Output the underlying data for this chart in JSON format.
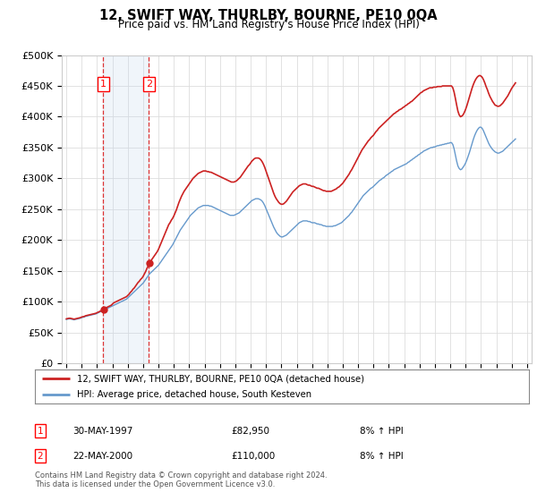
{
  "title": "12, SWIFT WAY, THURLBY, BOURNE, PE10 0QA",
  "subtitle": "Price paid vs. HM Land Registry's House Price Index (HPI)",
  "ylabel_ticks": [
    "£0",
    "£50K",
    "£100K",
    "£150K",
    "£200K",
    "£250K",
    "£300K",
    "£350K",
    "£400K",
    "£450K",
    "£500K"
  ],
  "ylim": [
    0,
    500000
  ],
  "xlim_start": 1994.7,
  "xlim_end": 2025.3,
  "background_color": "#ffffff",
  "grid_color": "#dddddd",
  "sale1_date": "30-MAY-1997",
  "sale1_price": 82950,
  "sale1_label": "1",
  "sale1_year": 1997.41,
  "sale2_date": "22-MAY-2000",
  "sale2_price": 110000,
  "sale2_label": "2",
  "sale2_year": 2000.38,
  "hpi_color": "#6699cc",
  "hpi_fill_color": "#c5d8ee",
  "price_color": "#cc2222",
  "vline_color": "#dd3333",
  "legend_label_price": "12, SWIFT WAY, THURLBY, BOURNE, PE10 0QA (detached house)",
  "legend_label_hpi": "HPI: Average price, detached house, South Kesteven",
  "footer": "Contains HM Land Registry data © Crown copyright and database right 2024.\nThis data is licensed under the Open Government Licence v3.0.",
  "hpi_data_x": [
    1995.0,
    1995.083,
    1995.167,
    1995.25,
    1995.333,
    1995.417,
    1995.5,
    1995.583,
    1995.667,
    1995.75,
    1995.833,
    1995.917,
    1996.0,
    1996.083,
    1996.167,
    1996.25,
    1996.333,
    1996.417,
    1996.5,
    1996.583,
    1996.667,
    1996.75,
    1996.833,
    1996.917,
    1997.0,
    1997.083,
    1997.167,
    1997.25,
    1997.333,
    1997.417,
    1997.5,
    1997.583,
    1997.667,
    1997.75,
    1997.833,
    1997.917,
    1998.0,
    1998.083,
    1998.167,
    1998.25,
    1998.333,
    1998.417,
    1998.5,
    1998.583,
    1998.667,
    1998.75,
    1998.833,
    1998.917,
    1999.0,
    1999.083,
    1999.167,
    1999.25,
    1999.333,
    1999.417,
    1999.5,
    1999.583,
    1999.667,
    1999.75,
    1999.833,
    1999.917,
    2000.0,
    2000.083,
    2000.167,
    2000.25,
    2000.333,
    2000.417,
    2000.5,
    2000.583,
    2000.667,
    2000.75,
    2000.833,
    2000.917,
    2001.0,
    2001.083,
    2001.167,
    2001.25,
    2001.333,
    2001.417,
    2001.5,
    2001.583,
    2001.667,
    2001.75,
    2001.833,
    2001.917,
    2002.0,
    2002.083,
    2002.167,
    2002.25,
    2002.333,
    2002.417,
    2002.5,
    2002.583,
    2002.667,
    2002.75,
    2002.833,
    2002.917,
    2003.0,
    2003.083,
    2003.167,
    2003.25,
    2003.333,
    2003.417,
    2003.5,
    2003.583,
    2003.667,
    2003.75,
    2003.833,
    2003.917,
    2004.0,
    2004.083,
    2004.167,
    2004.25,
    2004.333,
    2004.417,
    2004.5,
    2004.583,
    2004.667,
    2004.75,
    2004.833,
    2004.917,
    2005.0,
    2005.083,
    2005.167,
    2005.25,
    2005.333,
    2005.417,
    2005.5,
    2005.583,
    2005.667,
    2005.75,
    2005.833,
    2005.917,
    2006.0,
    2006.083,
    2006.167,
    2006.25,
    2006.333,
    2006.417,
    2006.5,
    2006.583,
    2006.667,
    2006.75,
    2006.833,
    2006.917,
    2007.0,
    2007.083,
    2007.167,
    2007.25,
    2007.333,
    2007.417,
    2007.5,
    2007.583,
    2007.667,
    2007.75,
    2007.833,
    2007.917,
    2008.0,
    2008.083,
    2008.167,
    2008.25,
    2008.333,
    2008.417,
    2008.5,
    2008.583,
    2008.667,
    2008.75,
    2008.833,
    2008.917,
    2009.0,
    2009.083,
    2009.167,
    2009.25,
    2009.333,
    2009.417,
    2009.5,
    2009.583,
    2009.667,
    2009.75,
    2009.833,
    2009.917,
    2010.0,
    2010.083,
    2010.167,
    2010.25,
    2010.333,
    2010.417,
    2010.5,
    2010.583,
    2010.667,
    2010.75,
    2010.833,
    2010.917,
    2011.0,
    2011.083,
    2011.167,
    2011.25,
    2011.333,
    2011.417,
    2011.5,
    2011.583,
    2011.667,
    2011.75,
    2011.833,
    2011.917,
    2012.0,
    2012.083,
    2012.167,
    2012.25,
    2012.333,
    2012.417,
    2012.5,
    2012.583,
    2012.667,
    2012.75,
    2012.833,
    2012.917,
    2013.0,
    2013.083,
    2013.167,
    2013.25,
    2013.333,
    2013.417,
    2013.5,
    2013.583,
    2013.667,
    2013.75,
    2013.833,
    2013.917,
    2014.0,
    2014.083,
    2014.167,
    2014.25,
    2014.333,
    2014.417,
    2014.5,
    2014.583,
    2014.667,
    2014.75,
    2014.833,
    2014.917,
    2015.0,
    2015.083,
    2015.167,
    2015.25,
    2015.333,
    2015.417,
    2015.5,
    2015.583,
    2015.667,
    2015.75,
    2015.833,
    2015.917,
    2016.0,
    2016.083,
    2016.167,
    2016.25,
    2016.333,
    2016.417,
    2016.5,
    2016.583,
    2016.667,
    2016.75,
    2016.833,
    2016.917,
    2017.0,
    2017.083,
    2017.167,
    2017.25,
    2017.333,
    2017.417,
    2017.5,
    2017.583,
    2017.667,
    2017.75,
    2017.833,
    2017.917,
    2018.0,
    2018.083,
    2018.167,
    2018.25,
    2018.333,
    2018.417,
    2018.5,
    2018.583,
    2018.667,
    2018.75,
    2018.833,
    2018.917,
    2019.0,
    2019.083,
    2019.167,
    2019.25,
    2019.333,
    2019.417,
    2019.5,
    2019.583,
    2019.667,
    2019.75,
    2019.833,
    2019.917,
    2020.0,
    2020.083,
    2020.167,
    2020.25,
    2020.333,
    2020.417,
    2020.5,
    2020.583,
    2020.667,
    2020.75,
    2020.833,
    2020.917,
    2021.0,
    2021.083,
    2021.167,
    2021.25,
    2021.333,
    2021.417,
    2021.5,
    2021.583,
    2021.667,
    2021.75,
    2021.833,
    2021.917,
    2022.0,
    2022.083,
    2022.167,
    2022.25,
    2022.333,
    2022.417,
    2022.5,
    2022.583,
    2022.667,
    2022.75,
    2022.833,
    2022.917,
    2023.0,
    2023.083,
    2023.167,
    2023.25,
    2023.333,
    2023.417,
    2023.5,
    2023.583,
    2023.667,
    2023.75,
    2023.833,
    2023.917,
    2024.0,
    2024.083,
    2024.167,
    2024.25
  ],
  "hpi_data_y": [
    71000,
    71500,
    72000,
    72000,
    71500,
    71000,
    70500,
    71000,
    71500,
    72000,
    72500,
    73000,
    74000,
    74500,
    75000,
    76000,
    76500,
    77000,
    77500,
    78000,
    78500,
    79000,
    79500,
    80000,
    81000,
    82000,
    83000,
    84000,
    85000,
    86000,
    87000,
    88000,
    89000,
    90000,
    91000,
    92000,
    93000,
    94000,
    95000,
    96000,
    97000,
    98000,
    99000,
    100000,
    101000,
    102000,
    103000,
    104000,
    106000,
    108000,
    110000,
    112000,
    114000,
    116000,
    118000,
    120000,
    122000,
    124000,
    126000,
    128000,
    130000,
    133000,
    136000,
    139000,
    142000,
    145000,
    147000,
    149000,
    151000,
    153000,
    155000,
    157000,
    159000,
    162000,
    165000,
    168000,
    171000,
    174000,
    177000,
    180000,
    183000,
    186000,
    189000,
    192000,
    196000,
    200000,
    204000,
    208000,
    212000,
    216000,
    219000,
    222000,
    225000,
    228000,
    231000,
    234000,
    237000,
    240000,
    242000,
    244000,
    246000,
    248000,
    250000,
    252000,
    253000,
    254000,
    255000,
    256000,
    256000,
    256000,
    256000,
    256000,
    255000,
    255000,
    254000,
    253000,
    252000,
    251000,
    250000,
    249000,
    248000,
    247000,
    246000,
    245000,
    244000,
    243000,
    242000,
    241000,
    240000,
    240000,
    240000,
    240000,
    241000,
    242000,
    243000,
    244000,
    246000,
    248000,
    250000,
    252000,
    254000,
    256000,
    258000,
    260000,
    262000,
    264000,
    265000,
    266000,
    267000,
    267000,
    267000,
    266000,
    265000,
    263000,
    260000,
    256000,
    251000,
    246000,
    241000,
    236000,
    231000,
    226000,
    221000,
    217000,
    213000,
    210000,
    208000,
    206000,
    205000,
    205000,
    206000,
    207000,
    208000,
    210000,
    212000,
    214000,
    216000,
    218000,
    220000,
    222000,
    224000,
    226000,
    228000,
    229000,
    230000,
    231000,
    231000,
    231000,
    231000,
    230000,
    230000,
    229000,
    228000,
    228000,
    228000,
    227000,
    226000,
    226000,
    225000,
    225000,
    224000,
    223000,
    223000,
    222000,
    222000,
    222000,
    222000,
    222000,
    222000,
    223000,
    223000,
    224000,
    225000,
    226000,
    227000,
    228000,
    230000,
    232000,
    234000,
    236000,
    238000,
    240000,
    243000,
    245000,
    248000,
    251000,
    254000,
    257000,
    260000,
    263000,
    266000,
    269000,
    272000,
    274000,
    276000,
    278000,
    280000,
    282000,
    284000,
    285000,
    287000,
    289000,
    291000,
    293000,
    295000,
    297000,
    298000,
    300000,
    301000,
    303000,
    305000,
    306000,
    308000,
    309000,
    311000,
    312000,
    314000,
    315000,
    316000,
    317000,
    318000,
    319000,
    320000,
    321000,
    322000,
    323000,
    324000,
    326000,
    327000,
    329000,
    330000,
    332000,
    333000,
    335000,
    336000,
    338000,
    339000,
    341000,
    342000,
    344000,
    345000,
    346000,
    347000,
    348000,
    349000,
    350000,
    350000,
    351000,
    351000,
    352000,
    353000,
    353000,
    354000,
    354000,
    355000,
    355000,
    356000,
    356000,
    357000,
    357000,
    358000,
    358000,
    355000,
    348000,
    338000,
    328000,
    320000,
    316000,
    314000,
    315000,
    318000,
    321000,
    325000,
    330000,
    336000,
    342000,
    349000,
    356000,
    363000,
    369000,
    374000,
    378000,
    381000,
    383000,
    383000,
    381000,
    377000,
    372000,
    367000,
    362000,
    357000,
    353000,
    350000,
    347000,
    345000,
    343000,
    342000,
    341000,
    341000,
    342000,
    343000,
    344000,
    346000,
    348000,
    350000,
    352000,
    354000,
    356000,
    358000,
    360000,
    362000,
    364000
  ],
  "price_data_x": [
    1995.0,
    1995.083,
    1995.167,
    1995.25,
    1995.333,
    1995.417,
    1995.5,
    1995.583,
    1995.667,
    1995.75,
    1995.833,
    1995.917,
    1996.0,
    1996.083,
    1996.167,
    1996.25,
    1996.333,
    1996.417,
    1996.5,
    1996.583,
    1996.667,
    1996.75,
    1996.833,
    1996.917,
    1997.0,
    1997.083,
    1997.167,
    1997.25,
    1997.333,
    1997.417,
    1997.5,
    1997.583,
    1997.667,
    1997.75,
    1997.833,
    1997.917,
    1998.0,
    1998.083,
    1998.167,
    1998.25,
    1998.333,
    1998.417,
    1998.5,
    1998.583,
    1998.667,
    1998.75,
    1998.833,
    1998.917,
    1999.0,
    1999.083,
    1999.167,
    1999.25,
    1999.333,
    1999.417,
    1999.5,
    1999.583,
    1999.667,
    1999.75,
    1999.833,
    1999.917,
    2000.0,
    2000.083,
    2000.167,
    2000.25,
    2000.333,
    2000.417,
    2000.5,
    2000.583,
    2000.667,
    2000.75,
    2000.833,
    2000.917,
    2001.0,
    2001.083,
    2001.167,
    2001.25,
    2001.333,
    2001.417,
    2001.5,
    2001.583,
    2001.667,
    2001.75,
    2001.833,
    2001.917,
    2002.0,
    2002.083,
    2002.167,
    2002.25,
    2002.333,
    2002.417,
    2002.5,
    2002.583,
    2002.667,
    2002.75,
    2002.833,
    2002.917,
    2003.0,
    2003.083,
    2003.167,
    2003.25,
    2003.333,
    2003.417,
    2003.5,
    2003.583,
    2003.667,
    2003.75,
    2003.833,
    2003.917,
    2004.0,
    2004.083,
    2004.167,
    2004.25,
    2004.333,
    2004.417,
    2004.5,
    2004.583,
    2004.667,
    2004.75,
    2004.833,
    2004.917,
    2005.0,
    2005.083,
    2005.167,
    2005.25,
    2005.333,
    2005.417,
    2005.5,
    2005.583,
    2005.667,
    2005.75,
    2005.833,
    2005.917,
    2006.0,
    2006.083,
    2006.167,
    2006.25,
    2006.333,
    2006.417,
    2006.5,
    2006.583,
    2006.667,
    2006.75,
    2006.833,
    2006.917,
    2007.0,
    2007.083,
    2007.167,
    2007.25,
    2007.333,
    2007.417,
    2007.5,
    2007.583,
    2007.667,
    2007.75,
    2007.833,
    2007.917,
    2008.0,
    2008.083,
    2008.167,
    2008.25,
    2008.333,
    2008.417,
    2008.5,
    2008.583,
    2008.667,
    2008.75,
    2008.833,
    2008.917,
    2009.0,
    2009.083,
    2009.167,
    2009.25,
    2009.333,
    2009.417,
    2009.5,
    2009.583,
    2009.667,
    2009.75,
    2009.833,
    2009.917,
    2010.0,
    2010.083,
    2010.167,
    2010.25,
    2010.333,
    2010.417,
    2010.5,
    2010.583,
    2010.667,
    2010.75,
    2010.833,
    2010.917,
    2011.0,
    2011.083,
    2011.167,
    2011.25,
    2011.333,
    2011.417,
    2011.5,
    2011.583,
    2011.667,
    2011.75,
    2011.833,
    2011.917,
    2012.0,
    2012.083,
    2012.167,
    2012.25,
    2012.333,
    2012.417,
    2012.5,
    2012.583,
    2012.667,
    2012.75,
    2012.833,
    2012.917,
    2013.0,
    2013.083,
    2013.167,
    2013.25,
    2013.333,
    2013.417,
    2013.5,
    2013.583,
    2013.667,
    2013.75,
    2013.833,
    2013.917,
    2014.0,
    2014.083,
    2014.167,
    2014.25,
    2014.333,
    2014.417,
    2014.5,
    2014.583,
    2014.667,
    2014.75,
    2014.833,
    2014.917,
    2015.0,
    2015.083,
    2015.167,
    2015.25,
    2015.333,
    2015.417,
    2015.5,
    2015.583,
    2015.667,
    2015.75,
    2015.833,
    2015.917,
    2016.0,
    2016.083,
    2016.167,
    2016.25,
    2016.333,
    2016.417,
    2016.5,
    2016.583,
    2016.667,
    2016.75,
    2016.833,
    2016.917,
    2017.0,
    2017.083,
    2017.167,
    2017.25,
    2017.333,
    2017.417,
    2017.5,
    2017.583,
    2017.667,
    2017.75,
    2017.833,
    2017.917,
    2018.0,
    2018.083,
    2018.167,
    2018.25,
    2018.333,
    2018.417,
    2018.5,
    2018.583,
    2018.667,
    2018.75,
    2018.833,
    2018.917,
    2019.0,
    2019.083,
    2019.167,
    2019.25,
    2019.333,
    2019.417,
    2019.5,
    2019.583,
    2019.667,
    2019.75,
    2019.833,
    2019.917,
    2020.0,
    2020.083,
    2020.167,
    2020.25,
    2020.333,
    2020.417,
    2020.5,
    2020.583,
    2020.667,
    2020.75,
    2020.833,
    2020.917,
    2021.0,
    2021.083,
    2021.167,
    2021.25,
    2021.333,
    2021.417,
    2021.5,
    2021.583,
    2021.667,
    2021.75,
    2021.833,
    2021.917,
    2022.0,
    2022.083,
    2022.167,
    2022.25,
    2022.333,
    2022.417,
    2022.5,
    2022.583,
    2022.667,
    2022.75,
    2022.833,
    2022.917,
    2023.0,
    2023.083,
    2023.167,
    2023.25,
    2023.333,
    2023.417,
    2023.5,
    2023.583,
    2023.667,
    2023.75,
    2023.833,
    2023.917,
    2024.0,
    2024.083,
    2024.167,
    2024.25
  ],
  "price_data_y": [
    72000,
    72500,
    73000,
    73000,
    72500,
    72000,
    71500,
    72000,
    72500,
    73000,
    73500,
    74000,
    75000,
    75500,
    76000,
    77000,
    77500,
    78000,
    78500,
    79000,
    79500,
    80000,
    80500,
    81000,
    82000,
    83000,
    84000,
    85000,
    86000,
    87000,
    88000,
    89500,
    91000,
    92000,
    93000,
    94000,
    96000,
    98000,
    99000,
    100000,
    101000,
    102000,
    103000,
    104000,
    105000,
    106000,
    107000,
    108000,
    110000,
    112000,
    115000,
    117000,
    120000,
    122000,
    125000,
    128000,
    131000,
    133000,
    136000,
    138000,
    141000,
    145000,
    149000,
    154000,
    158000,
    162000,
    166000,
    169000,
    172000,
    175000,
    178000,
    181000,
    185000,
    190000,
    195000,
    200000,
    205000,
    210000,
    215000,
    220000,
    225000,
    228000,
    232000,
    235000,
    239000,
    244000,
    249000,
    255000,
    261000,
    266000,
    271000,
    275000,
    279000,
    282000,
    285000,
    288000,
    291000,
    294000,
    297000,
    300000,
    302000,
    304000,
    306000,
    308000,
    309000,
    310000,
    311000,
    312000,
    312000,
    312000,
    311000,
    311000,
    310000,
    310000,
    309000,
    308000,
    307000,
    306000,
    305000,
    304000,
    303000,
    302000,
    301000,
    300000,
    299000,
    298000,
    297000,
    296000,
    295000,
    294000,
    294000,
    294000,
    295000,
    296000,
    298000,
    300000,
    302000,
    305000,
    308000,
    311000,
    314000,
    317000,
    320000,
    322000,
    325000,
    328000,
    330000,
    332000,
    333000,
    333000,
    333000,
    332000,
    330000,
    327000,
    323000,
    318000,
    312000,
    306000,
    300000,
    294000,
    288000,
    282000,
    276000,
    271000,
    267000,
    264000,
    261000,
    259000,
    258000,
    258000,
    259000,
    261000,
    263000,
    266000,
    269000,
    272000,
    275000,
    278000,
    280000,
    282000,
    284000,
    286000,
    288000,
    289000,
    290000,
    291000,
    291000,
    291000,
    290000,
    289000,
    289000,
    288000,
    287000,
    287000,
    286000,
    285000,
    284000,
    284000,
    283000,
    282000,
    281000,
    280000,
    280000,
    279000,
    279000,
    279000,
    279000,
    279000,
    280000,
    281000,
    282000,
    283000,
    285000,
    286000,
    288000,
    290000,
    292000,
    295000,
    298000,
    301000,
    304000,
    307000,
    311000,
    314000,
    318000,
    322000,
    326000,
    330000,
    334000,
    338000,
    342000,
    346000,
    349000,
    352000,
    355000,
    358000,
    361000,
    363000,
    366000,
    368000,
    370000,
    373000,
    376000,
    378000,
    381000,
    383000,
    385000,
    387000,
    389000,
    391000,
    393000,
    395000,
    397000,
    399000,
    401000,
    403000,
    405000,
    406000,
    408000,
    409000,
    411000,
    412000,
    413000,
    415000,
    416000,
    418000,
    419000,
    421000,
    422000,
    424000,
    425000,
    427000,
    429000,
    431000,
    433000,
    435000,
    437000,
    439000,
    440000,
    442000,
    443000,
    444000,
    445000,
    446000,
    447000,
    447000,
    447000,
    448000,
    448000,
    448000,
    449000,
    449000,
    449000,
    449000,
    450000,
    450000,
    450000,
    450000,
    450000,
    450000,
    450000,
    450000,
    447000,
    440000,
    430000,
    419000,
    409000,
    403000,
    400000,
    401000,
    403000,
    407000,
    412000,
    418000,
    425000,
    432000,
    439000,
    446000,
    452000,
    457000,
    461000,
    464000,
    466000,
    467000,
    466000,
    464000,
    460000,
    455000,
    449000,
    444000,
    438000,
    433000,
    429000,
    425000,
    422000,
    419000,
    418000,
    417000,
    417000,
    418000,
    420000,
    422000,
    425000,
    428000,
    431000,
    434000,
    438000,
    442000,
    446000,
    449000,
    452000,
    455000
  ]
}
